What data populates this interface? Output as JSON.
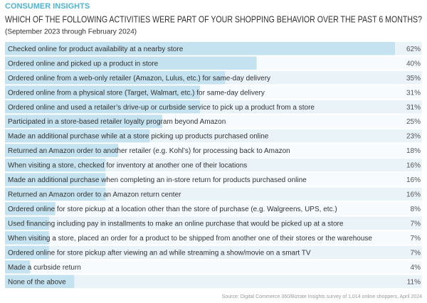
{
  "chart_data": {
    "type": "bar",
    "supertitle": "CONSUMER INSIGHTS",
    "title": "WHICH OF THE FOLLOWING ACTIVITIES WERE PART OF YOUR SHOPPING BEHAVIOR OVER THE PAST 6 MONTHS?",
    "subtitle": "(September 2023 through February 2024)",
    "categories": [
      "Checked online for product availability at a nearby store",
      "Ordered online and picked up a product in store",
      "Ordered online from a web-only retailer (Amazon, Lulus, etc.) for same-day delivery",
      "Ordered online from a physical store (Target, Walmart, etc.) for same-day delivery",
      "Ordered online and used a retailer’s drive-up or curbside service to pick up a product from a store",
      "Participated in a store-based retailer loyalty program beyond Amazon",
      "Made an additional purchase while at a store picking up products purchased online",
      "Returned an Amazon order to another retailer (e.g. Kohl’s) for processing back to Amazon",
      "When visiting a store, checked for inventory at another one of their locations",
      "Made an additional purchase when completing an in-store return for products purchased online",
      "Returned an Amazon order to an Amazon return center",
      "Ordered online for store pickup at a location other than the store of purchase (e.g. Walgreens, UPS, etc.)",
      "Used financing including pay in installments to make an online purchase that would be picked up at a store",
      "When visiting a store, placed an order for a product to be shipped from another one of their stores or the warehouse",
      "Ordered online for store pickup after viewing an ad while streaming a show/movie on a smart TV",
      "Made a curbside return",
      "None of the above"
    ],
    "values": [
      62,
      40,
      35,
      31,
      31,
      25,
      23,
      18,
      16,
      16,
      16,
      8,
      7,
      7,
      7,
      4,
      11
    ],
    "value_labels": [
      "62%",
      "40%",
      "35%",
      "31%",
      "31%",
      "25%",
      "23%",
      "18%",
      "16%",
      "16%",
      "16%",
      "8%",
      "7%",
      "7%",
      "7%",
      "4%",
      "11%"
    ],
    "color": "#c4e2ef",
    "source": "Source: Digital Commerce 360/Bizrate Insights survey of 1,014 online shoppers, April 2024"
  }
}
